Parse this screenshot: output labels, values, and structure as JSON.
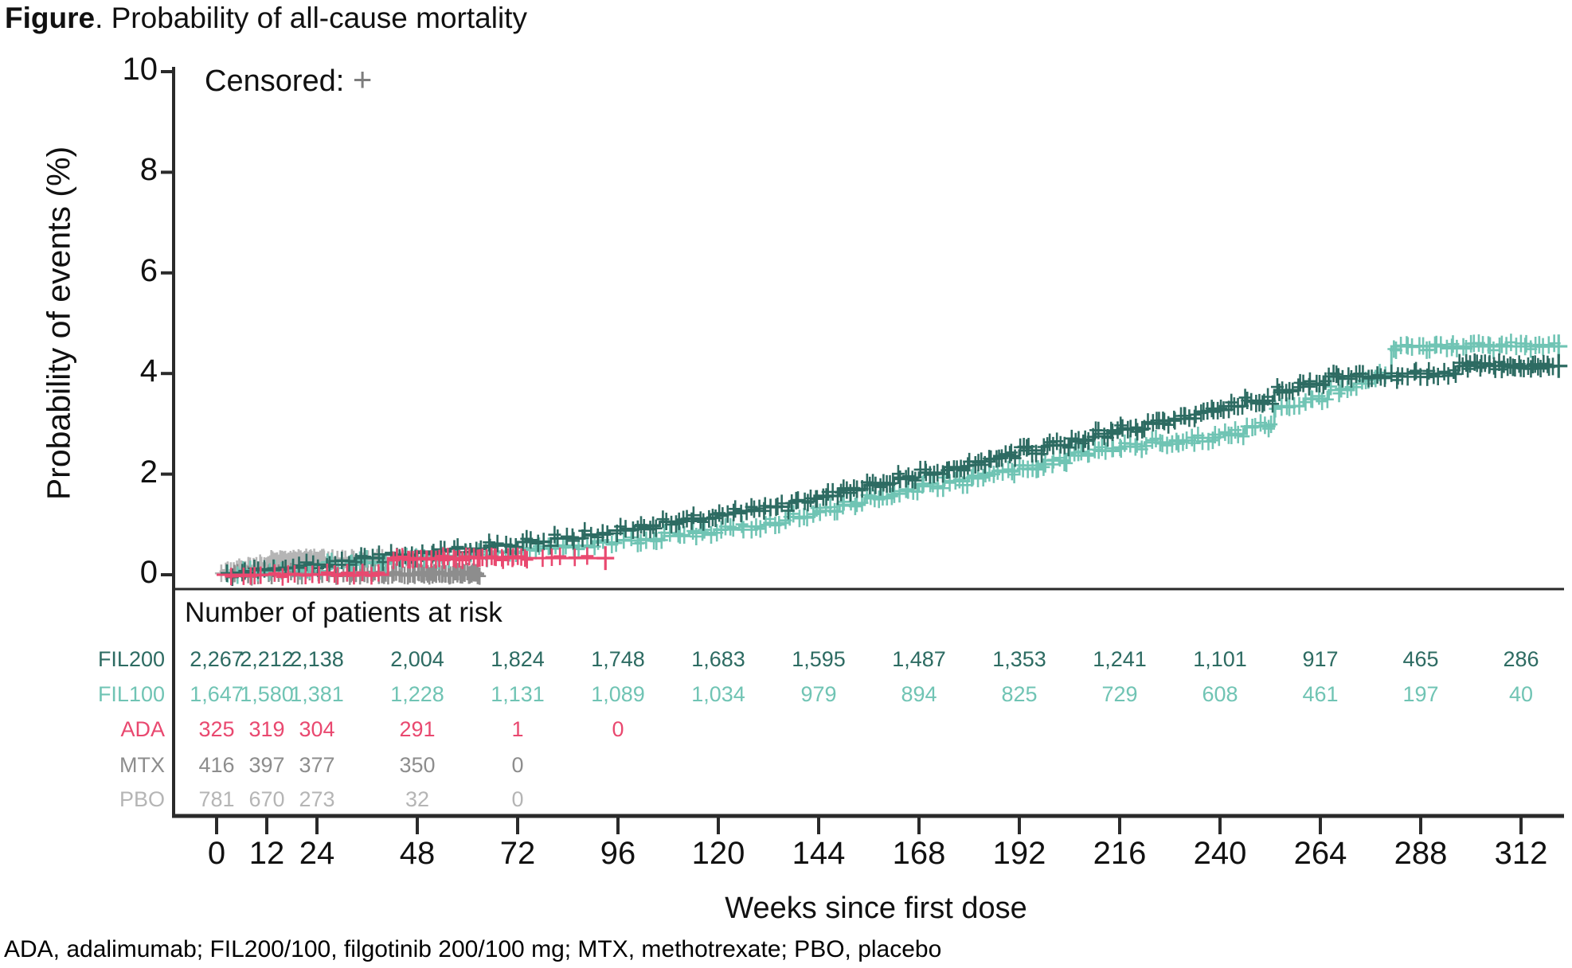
{
  "figure": {
    "title_bold": "Figure",
    "title_rest": ". Probability of all-cause mortality",
    "footnote": "ADA, adalimumab; FIL200/100, filgotinib 200/100 mg; MTX, methotrexate; PBO, placebo"
  },
  "legend": {
    "label": "Censored:",
    "symbol": "+",
    "symbol_color": "#7d7d7d"
  },
  "axes": {
    "y_label": "Probability of events (%)",
    "x_label": "Weeks since first dose",
    "y_ticks": [
      0,
      2,
      4,
      6,
      8,
      10
    ],
    "x_ticks": [
      0,
      12,
      24,
      48,
      72,
      96,
      120,
      144,
      168,
      192,
      216,
      240,
      264,
      288,
      312
    ],
    "axis_color": "#2a2a2a"
  },
  "risk_table": {
    "header": "Number of patients at risk",
    "columns": [
      0,
      12,
      24,
      48,
      72,
      96,
      120,
      144,
      168,
      192,
      216,
      240,
      264,
      288,
      312
    ],
    "rows": [
      {
        "name": "FIL200",
        "color": "#2d6b62",
        "values": [
          "2,267",
          "2,212",
          "2,138",
          "2,004",
          "1,824",
          "1,748",
          "1,683",
          "1,595",
          "1,487",
          "1,353",
          "1,241",
          "1,101",
          "917",
          "465",
          "286"
        ]
      },
      {
        "name": "FIL100",
        "color": "#70c4b4",
        "values": [
          "1,647",
          "1,580",
          "1,381",
          "1,228",
          "1,131",
          "1,089",
          "1,034",
          "979",
          "894",
          "825",
          "729",
          "608",
          "461",
          "197",
          "40"
        ]
      },
      {
        "name": "ADA",
        "color": "#e9486f",
        "values": [
          "325",
          "319",
          "304",
          "291",
          "1",
          "0"
        ]
      },
      {
        "name": "MTX",
        "color": "#8d8d8d",
        "values": [
          "416",
          "397",
          "377",
          "350",
          "0"
        ]
      },
      {
        "name": "PBO",
        "color": "#b5b5b5",
        "values": [
          "781",
          "670",
          "273",
          "32",
          "0"
        ]
      }
    ]
  },
  "chart_data": {
    "type": "line",
    "subtype": "kaplan-meier-step",
    "title": "Probability of all-cause mortality",
    "xlabel": "Weeks since first dose",
    "ylabel": "Probability of events (%)",
    "xlim": [
      0,
      321
    ],
    "ylim": [
      0,
      10
    ],
    "grid": false,
    "legend_position": "top-left-inside",
    "series": [
      {
        "name": "PBO",
        "color": "#b5b5b5",
        "steps": [
          [
            0,
            0
          ],
          [
            2,
            0.08
          ],
          [
            5,
            0.14
          ],
          [
            9,
            0.2
          ],
          [
            13,
            0.27
          ],
          [
            18,
            0.3
          ],
          [
            52,
            0.3
          ]
        ],
        "censor_ranges": [
          [
            1,
            12,
            16
          ],
          [
            12,
            26,
            42
          ],
          [
            26,
            50,
            22
          ]
        ]
      },
      {
        "name": "MTX",
        "color": "#8d8d8d",
        "steps": [
          [
            0,
            0
          ],
          [
            12,
            0.02
          ],
          [
            64,
            0.02
          ]
        ],
        "censor_ranges": [
          [
            3,
            30,
            16
          ],
          [
            30,
            48,
            28
          ],
          [
            48,
            63,
            40
          ]
        ]
      },
      {
        "name": "FIL100",
        "color": "#70c4b4",
        "steps": [
          [
            0,
            0
          ],
          [
            5,
            0.05
          ],
          [
            11,
            0.1
          ],
          [
            18,
            0.15
          ],
          [
            26,
            0.2
          ],
          [
            34,
            0.25
          ],
          [
            42,
            0.3
          ],
          [
            50,
            0.35
          ],
          [
            58,
            0.4
          ],
          [
            66,
            0.46
          ],
          [
            74,
            0.52
          ],
          [
            82,
            0.58
          ],
          [
            90,
            0.64
          ],
          [
            96,
            0.68
          ],
          [
            101,
            0.71
          ],
          [
            107,
            0.77
          ],
          [
            113,
            0.83
          ],
          [
            119,
            0.9
          ],
          [
            125,
            0.96
          ],
          [
            131,
            1.03
          ],
          [
            137,
            1.15
          ],
          [
            143,
            1.27
          ],
          [
            149,
            1.39
          ],
          [
            155,
            1.52
          ],
          [
            162,
            1.66
          ],
          [
            168,
            1.76
          ],
          [
            174,
            1.86
          ],
          [
            180,
            1.97
          ],
          [
            186,
            2.07
          ],
          [
            192,
            2.17
          ],
          [
            198,
            2.27
          ],
          [
            204,
            2.37
          ],
          [
            210,
            2.46
          ],
          [
            216,
            2.55
          ],
          [
            222,
            2.63
          ],
          [
            228,
            2.67
          ],
          [
            234,
            2.72
          ],
          [
            240,
            2.8
          ],
          [
            246,
            2.95
          ],
          [
            253,
            3.35
          ],
          [
            260,
            3.5
          ],
          [
            266,
            3.67
          ],
          [
            272,
            3.8
          ],
          [
            277,
            3.94
          ],
          [
            281,
            4.54
          ],
          [
            321,
            4.54
          ]
        ],
        "censor_ranges": [
          [
            2,
            24,
            12
          ],
          [
            24,
            60,
            22
          ],
          [
            60,
            100,
            26
          ],
          [
            100,
            140,
            34
          ],
          [
            140,
            180,
            40
          ],
          [
            180,
            220,
            42
          ],
          [
            220,
            253,
            34
          ],
          [
            253,
            280,
            24
          ],
          [
            281,
            320,
            40
          ]
        ],
        "terminal_censor": [
          321,
          4.54
        ]
      },
      {
        "name": "FIL200",
        "color": "#2d6b62",
        "steps": [
          [
            0,
            0
          ],
          [
            4,
            0.04
          ],
          [
            9,
            0.09
          ],
          [
            15,
            0.14
          ],
          [
            21,
            0.2
          ],
          [
            27,
            0.27
          ],
          [
            33,
            0.33
          ],
          [
            40,
            0.4
          ],
          [
            48,
            0.46
          ],
          [
            56,
            0.52
          ],
          [
            64,
            0.58
          ],
          [
            72,
            0.65
          ],
          [
            80,
            0.72
          ],
          [
            88,
            0.8
          ],
          [
            94,
            0.88
          ],
          [
            100,
            0.97
          ],
          [
            106,
            1.05
          ],
          [
            112,
            1.12
          ],
          [
            118,
            1.2
          ],
          [
            124,
            1.27
          ],
          [
            131,
            1.35
          ],
          [
            137,
            1.46
          ],
          [
            143,
            1.57
          ],
          [
            149,
            1.68
          ],
          [
            155,
            1.79
          ],
          [
            162,
            1.93
          ],
          [
            168,
            2.03
          ],
          [
            174,
            2.14
          ],
          [
            180,
            2.25
          ],
          [
            186,
            2.36
          ],
          [
            192,
            2.47
          ],
          [
            198,
            2.58
          ],
          [
            204,
            2.69
          ],
          [
            210,
            2.8
          ],
          [
            216,
            2.9
          ],
          [
            222,
            3.0
          ],
          [
            228,
            3.1
          ],
          [
            234,
            3.24
          ],
          [
            240,
            3.35
          ],
          [
            246,
            3.46
          ],
          [
            253,
            3.67
          ],
          [
            259,
            3.78
          ],
          [
            266,
            3.94
          ],
          [
            283,
            4.0
          ],
          [
            297,
            4.15
          ],
          [
            321,
            4.15
          ]
        ],
        "censor_ranges": [
          [
            2,
            24,
            14
          ],
          [
            24,
            60,
            26
          ],
          [
            60,
            100,
            30
          ],
          [
            100,
            140,
            40
          ],
          [
            140,
            180,
            46
          ],
          [
            180,
            220,
            48
          ],
          [
            220,
            253,
            40
          ],
          [
            253,
            270,
            20
          ],
          [
            270,
            297,
            26
          ],
          [
            297,
            320,
            34
          ]
        ],
        "terminal_censor": [
          321,
          4.15
        ]
      },
      {
        "name": "ADA",
        "color": "#e9486f",
        "steps": [
          [
            0,
            0
          ],
          [
            40,
            0
          ],
          [
            41,
            0.33
          ],
          [
            93,
            0.33
          ]
        ],
        "censor_ranges": [
          [
            3,
            40,
            20
          ],
          [
            42,
            75,
            40
          ],
          [
            75,
            92,
            5
          ]
        ],
        "terminal_censor": [
          93,
          0.33
        ]
      }
    ]
  }
}
